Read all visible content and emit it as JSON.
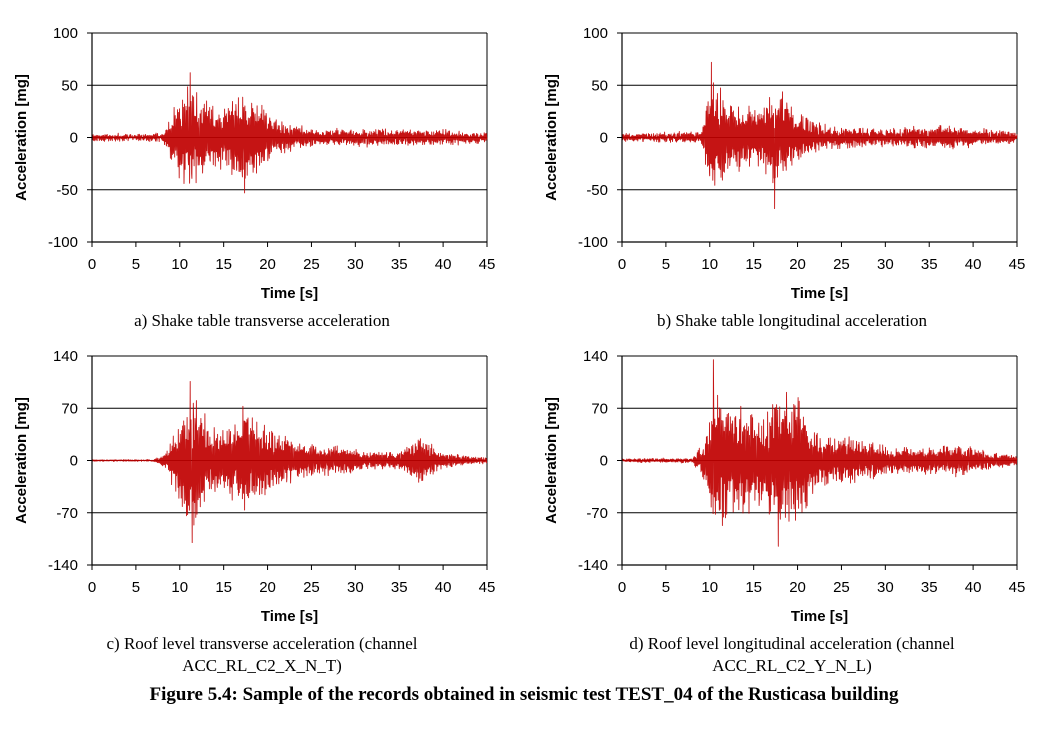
{
  "figure_caption": "Figure 5.4: Sample of the records obtained in seismic test TEST_04 of the Rusticasa building",
  "series_color": "#c00000",
  "chart_data": [
    {
      "id": "a",
      "type": "line",
      "caption": "a) Shake table transverse acceleration",
      "xlabel": "Time [s]",
      "ylabel": "Acceleration  [mg]",
      "xlim": [
        0,
        45
      ],
      "ylim": [
        -100,
        100
      ],
      "xticks": [
        0,
        5,
        10,
        15,
        20,
        25,
        30,
        35,
        40,
        45
      ],
      "yticks": [
        -100,
        -50,
        0,
        50,
        100
      ],
      "grid": "horizontal",
      "series": [
        {
          "name": "transverse",
          "onset_s": 8.5,
          "peak_max": 62,
          "peak_max_t": 11.2,
          "peak_min": -53,
          "peak_min_t": 17.4,
          "strong_motion_s": [
            9,
            20
          ],
          "noise_level": 3,
          "envelope": [
            [
              0,
              3
            ],
            [
              8,
              3
            ],
            [
              9,
              25
            ],
            [
              11,
              55
            ],
            [
              13,
              40
            ],
            [
              15,
              30
            ],
            [
              17,
              48
            ],
            [
              18.5,
              40
            ],
            [
              20,
              25
            ],
            [
              22,
              15
            ],
            [
              25,
              8
            ],
            [
              35,
              8
            ],
            [
              45,
              5
            ]
          ]
        }
      ]
    },
    {
      "id": "b",
      "type": "line",
      "caption": "b) Shake table longitudinal acceleration",
      "xlabel": "Time [s]",
      "ylabel": "Acceleration  [mg]",
      "xlim": [
        0,
        45
      ],
      "ylim": [
        -100,
        100
      ],
      "xticks": [
        0,
        5,
        10,
        15,
        20,
        25,
        30,
        35,
        40,
        45
      ],
      "yticks": [
        -100,
        -50,
        0,
        50,
        100
      ],
      "grid": "horizontal",
      "series": [
        {
          "name": "longitudinal",
          "onset_s": 9,
          "peak_max": 72,
          "peak_max_t": 10.2,
          "peak_min": -68,
          "peak_min_t": 17.4,
          "strong_motion_s": [
            9.5,
            21
          ],
          "noise_level": 3,
          "envelope": [
            [
              0,
              3
            ],
            [
              9,
              5
            ],
            [
              10,
              55
            ],
            [
              12,
              45
            ],
            [
              14,
              30
            ],
            [
              16,
              30
            ],
            [
              17.5,
              55
            ],
            [
              19,
              35
            ],
            [
              21,
              20
            ],
            [
              23,
              12
            ],
            [
              30,
              8
            ],
            [
              36,
              12
            ],
            [
              45,
              5
            ]
          ]
        }
      ]
    },
    {
      "id": "c",
      "type": "line",
      "caption": "c) Roof level transverse acceleration (channel\nACC_RL_C2_X_N_T)",
      "xlabel": "Time [s]",
      "ylabel": "Acceleration  [mg]",
      "xlim": [
        0,
        45
      ],
      "ylim": [
        -140,
        140
      ],
      "xticks": [
        0,
        5,
        10,
        15,
        20,
        25,
        30,
        35,
        40,
        45
      ],
      "yticks": [
        -140,
        -70,
        0,
        70,
        140
      ],
      "grid": "horizontal",
      "series": [
        {
          "name": "ACC_RL_C2_X_N_T",
          "onset_s": 7.5,
          "peak_max": 106,
          "peak_max_t": 11.2,
          "peak_min": -110,
          "peak_min_t": 11.4,
          "strong_motion_s": [
            9,
            20
          ],
          "noise_level": 1,
          "envelope": [
            [
              0,
              1
            ],
            [
              7,
              1
            ],
            [
              8.5,
              12
            ],
            [
              10,
              70
            ],
            [
              11.5,
              95
            ],
            [
              13,
              60
            ],
            [
              15,
              45
            ],
            [
              17.5,
              85
            ],
            [
              19,
              55
            ],
            [
              21,
              40
            ],
            [
              23,
              30
            ],
            [
              26,
              20
            ],
            [
              29,
              22
            ],
            [
              31,
              12
            ],
            [
              35,
              12
            ],
            [
              37.5,
              32
            ],
            [
              40,
              12
            ],
            [
              43,
              6
            ],
            [
              45,
              4
            ]
          ]
        }
      ]
    },
    {
      "id": "d",
      "type": "line",
      "caption": "d) Roof level longitudinal acceleration (channel\nACC_RL_C2_Y_N_L)",
      "xlabel": "Time [s]",
      "ylabel": "Acceleration  [mg]",
      "xlim": [
        0,
        45
      ],
      "ylim": [
        -140,
        140
      ],
      "xticks": [
        0,
        5,
        10,
        15,
        20,
        25,
        30,
        35,
        40,
        45
      ],
      "yticks": [
        -140,
        -70,
        0,
        70,
        140
      ],
      "grid": "horizontal",
      "series": [
        {
          "name": "ACC_RL_C2_Y_N_L",
          "onset_s": 8.5,
          "peak_max": 135,
          "peak_max_t": 10.4,
          "peak_min": -115,
          "peak_min_t": 17.8,
          "strong_motion_s": [
            9.5,
            21
          ],
          "noise_level": 1.5,
          "envelope": [
            [
              0,
              2
            ],
            [
              8,
              3
            ],
            [
              9.5,
              30
            ],
            [
              10.4,
              110
            ],
            [
              12,
              80
            ],
            [
              14,
              85
            ],
            [
              16,
              70
            ],
            [
              18,
              100
            ],
            [
              20.5,
              95
            ],
            [
              21.5,
              45
            ],
            [
              24,
              35
            ],
            [
              28,
              28
            ],
            [
              31,
              18
            ],
            [
              36,
              20
            ],
            [
              38.5,
              22
            ],
            [
              42,
              12
            ],
            [
              45,
              6
            ]
          ]
        }
      ]
    }
  ]
}
